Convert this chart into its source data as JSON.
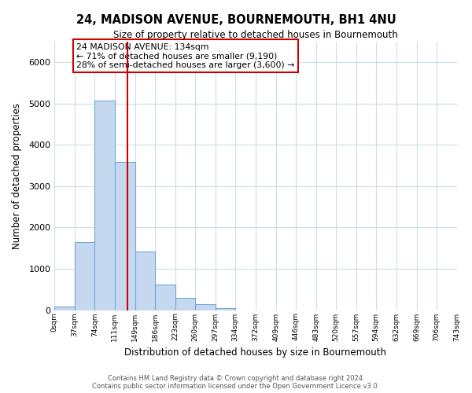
{
  "title": "24, MADISON AVENUE, BOURNEMOUTH, BH1 4NU",
  "subtitle": "Size of property relative to detached houses in Bournemouth",
  "xlabel": "Distribution of detached houses by size in Bournemouth",
  "ylabel": "Number of detached properties",
  "footer_line1": "Contains HM Land Registry data © Crown copyright and database right 2024.",
  "footer_line2": "Contains public sector information licensed under the Open Government Licence v3.0.",
  "bin_edges": [
    0,
    37,
    74,
    111,
    149,
    186,
    223,
    260,
    297,
    334,
    372,
    409,
    446,
    483,
    520,
    557,
    594,
    632,
    669,
    706,
    743
  ],
  "bar_heights": [
    80,
    1650,
    5080,
    3590,
    1420,
    610,
    290,
    140,
    50,
    0,
    0,
    0,
    0,
    0,
    0,
    0,
    0,
    0,
    0,
    0
  ],
  "bar_color": "#c5d8f0",
  "bar_edge_color": "#6fa8d4",
  "property_line_x": 134,
  "property_line_color": "#cc0000",
  "annotation_title": "24 MADISON AVENUE: 134sqm",
  "annotation_line1": "← 71% of detached houses are smaller (9,190)",
  "annotation_line2": "28% of semi-detached houses are larger (3,600) →",
  "ylim": [
    0,
    6500
  ],
  "xlim": [
    0,
    743
  ],
  "tick_labels": [
    "0sqm",
    "37sqm",
    "74sqm",
    "111sqm",
    "149sqm",
    "186sqm",
    "223sqm",
    "260sqm",
    "297sqm",
    "334sqm",
    "372sqm",
    "409sqm",
    "446sqm",
    "483sqm",
    "520sqm",
    "557sqm",
    "594sqm",
    "632sqm",
    "669sqm",
    "706sqm",
    "743sqm"
  ],
  "bg_color": "#ffffff",
  "grid_color": "#ccdde8"
}
